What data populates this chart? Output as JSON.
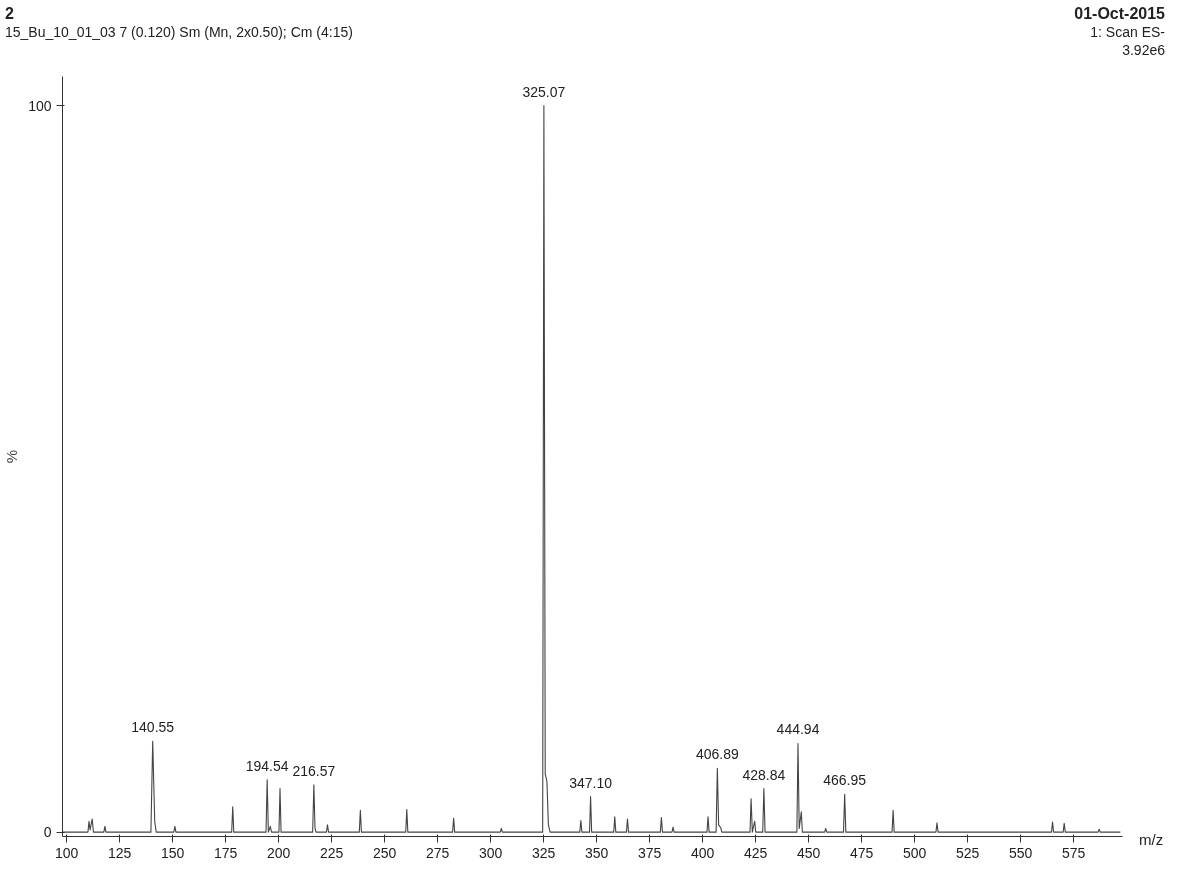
{
  "chart_data": {
    "type": "line",
    "title": "2",
    "subtitle": "15_Bu_10_01_03  7 (0.120) Sm (Mn, 2x0.50); Cm (4:15)",
    "xlabel": "m/z",
    "ylabel": "%",
    "x": [
      98,
      110,
      110.5,
      111,
      112,
      112.6,
      117.5,
      118,
      118.5,
      139.7,
      140.55,
      141.5,
      142.2,
      150.5,
      151,
      151.5,
      177.8,
      178.3,
      178.8,
      194,
      194.54,
      195.1,
      196,
      196.6,
      200.1,
      200.6,
      201.1,
      216,
      216.57,
      217.1,
      217.6,
      222.5,
      223,
      223.5,
      238,
      238.5,
      239,
      259.9,
      260.4,
      260.9,
      282,
      282.5,
      283,
      304.5,
      305,
      305.5,
      324.5,
      325.07,
      325.7,
      326.5,
      327.2,
      328,
      342,
      342.5,
      343,
      346.6,
      347.1,
      347.6,
      358,
      358.5,
      359,
      364,
      364.5,
      365,
      380,
      380.5,
      381,
      385.5,
      386,
      386.5,
      402,
      402.5,
      403,
      406.3,
      406.89,
      407.5,
      408.5,
      409,
      422.3,
      422.8,
      423.4,
      424.5,
      425,
      428.3,
      428.84,
      429.4,
      444.4,
      444.94,
      445.5,
      446.5,
      447,
      457.5,
      458,
      458.5,
      466.4,
      466.95,
      467.5,
      489.3,
      489.8,
      490.3,
      510,
      510.5,
      511,
      564.5,
      565,
      565.5,
      570,
      570.5,
      571,
      586.5,
      587,
      587.5,
      597
    ],
    "series": [
      {
        "color": "#444444",
        "values": [
          0,
          0,
          1.5,
          0.3,
          1.8,
          0,
          0,
          0.8,
          0,
          0,
          12.5,
          1.5,
          0,
          0,
          0.8,
          0,
          0,
          3.5,
          0,
          0,
          7.2,
          0,
          0.8,
          0,
          0,
          6.0,
          0,
          0,
          6.5,
          0.6,
          0,
          0,
          1.0,
          0,
          0,
          3.0,
          0,
          0,
          3.1,
          0,
          0,
          1.9,
          0,
          0,
          0.5,
          0,
          0,
          100,
          8,
          7,
          1,
          0,
          0,
          1.6,
          0,
          0,
          4.9,
          0,
          0,
          2.1,
          0,
          0,
          1.8,
          0,
          0,
          2.0,
          0,
          0,
          0.7,
          0,
          0,
          2.1,
          0,
          0,
          8.8,
          1.0,
          0.6,
          0,
          0,
          4.6,
          0,
          1.5,
          0,
          0,
          6.0,
          0,
          0,
          12.2,
          0.5,
          2.8,
          0,
          0,
          0.5,
          0,
          0,
          5.2,
          0,
          0,
          3.0,
          0,
          0,
          1.3,
          0,
          0,
          1.4,
          0,
          0,
          1.2,
          0,
          0,
          0.4,
          0,
          0
        ]
      }
    ],
    "xlim": [
      98,
      598
    ],
    "xticks": [
      100,
      125,
      150,
      175,
      200,
      225,
      250,
      275,
      300,
      325,
      350,
      375,
      400,
      425,
      450,
      475,
      500,
      525,
      550,
      575
    ],
    "ylim": [
      -0.6,
      104
    ],
    "yticks": [
      0,
      100
    ],
    "grid": false,
    "marker": "none",
    "line_style": "solid",
    "annotations": [
      {
        "text": "140.55",
        "x": 140.55,
        "y": 12.5
      },
      {
        "text": "194.54",
        "x": 194.54,
        "y": 7.2
      },
      {
        "text": "216.57",
        "x": 216.57,
        "y": 6.5
      },
      {
        "text": "325.07",
        "x": 325.07,
        "y": 100
      },
      {
        "text": "347.10",
        "x": 347.1,
        "y": 4.9
      },
      {
        "text": "406.89",
        "x": 406.89,
        "y": 8.8
      },
      {
        "text": "428.84",
        "x": 428.84,
        "y": 6.0
      },
      {
        "text": "444.94",
        "x": 444.94,
        "y": 12.2
      },
      {
        "text": "466.95",
        "x": 466.95,
        "y": 5.2
      },
      "01-Oct-2015",
      "1: Scan ES-",
      "3.92e6"
    ]
  }
}
